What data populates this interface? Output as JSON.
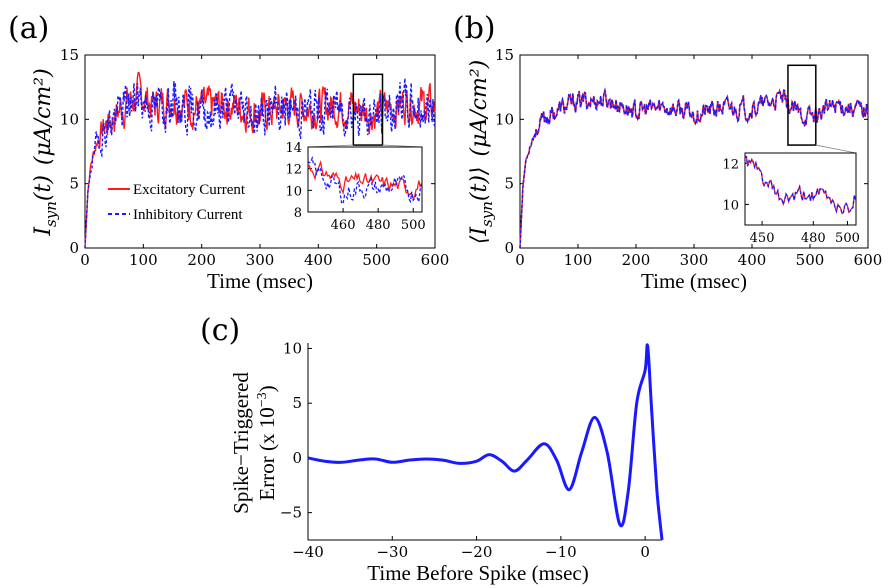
{
  "panel_labels": [
    "(a)",
    "(b)",
    "(c)"
  ],
  "colors": {
    "excitatory": "#ff1a1a",
    "inhibitory": "#1a1aff",
    "axis": "#000000"
  },
  "chart_data": [
    {
      "type": "line",
      "panel": "(a)",
      "xlabel": "Time (msec)",
      "ylabel_parts": {
        "main": "I",
        "sub": "syn",
        "arg": "(t)",
        "units": "(μA/cm²)"
      },
      "xlim": [
        0,
        600
      ],
      "ylim": [
        0,
        15
      ],
      "xticks": [
        "0",
        "100",
        "200",
        "300",
        "400",
        "500",
        "600"
      ],
      "yticks": [
        "0",
        "5",
        "10",
        "15"
      ],
      "legend": {
        "placement": "lower-left, inside"
      },
      "series": [
        {
          "name": "Excitatory Current",
          "style": "solid",
          "color": "#ff1a1a",
          "x": [
            0,
            5,
            10,
            20,
            30,
            40,
            50,
            60,
            70,
            80,
            90,
            100,
            120,
            150,
            200,
            250,
            300,
            350,
            400,
            450,
            480,
            500,
            550,
            600
          ],
          "y": [
            0,
            4.5,
            6.5,
            8.3,
            9.2,
            9.8,
            10.3,
            10.8,
            11.2,
            11.5,
            11.7,
            11.8,
            11.0,
            11.6,
            10.8,
            11.2,
            10.5,
            11.0,
            10.9,
            11.2,
            10.6,
            10.5,
            11.4,
            10.9
          ]
        },
        {
          "name": "Inhibitory Current",
          "style": "dashed",
          "color": "#1a1aff",
          "x": [
            0,
            5,
            10,
            20,
            30,
            40,
            50,
            60,
            70,
            80,
            90,
            100,
            120,
            150,
            200,
            250,
            300,
            350,
            400,
            450,
            480,
            500,
            550,
            600
          ],
          "y": [
            0,
            4.3,
            6.3,
            8.1,
            9.0,
            9.6,
            10.1,
            10.6,
            11.0,
            11.3,
            11.5,
            11.6,
            10.8,
            11.4,
            10.6,
            11.0,
            10.3,
            10.8,
            10.7,
            11.0,
            10.3,
            10.2,
            11.2,
            10.7
          ]
        }
      ],
      "zoom_box": {
        "x": [
          460,
          510
        ],
        "y": [
          8,
          13.5
        ]
      },
      "inset": {
        "xlim": [
          440,
          505
        ],
        "ylim": [
          8,
          14
        ],
        "xticks": [
          "460",
          "480",
          "500"
        ],
        "yticks": [
          "8",
          "10",
          "12",
          "14"
        ]
      }
    },
    {
      "type": "line",
      "panel": "(b)",
      "xlabel": "Time (msec)",
      "ylabel_parts": {
        "main": "⟨I",
        "sub": "syn",
        "arg": "(t)⟩",
        "units": "(μA/cm²)"
      },
      "xlim": [
        0,
        600
      ],
      "ylim": [
        0,
        15
      ],
      "xticks": [
        "0",
        "100",
        "200",
        "300",
        "400",
        "500",
        "600"
      ],
      "yticks": [
        "0",
        "5",
        "10",
        "15"
      ],
      "series": [
        {
          "style": "mixed",
          "x": [
            0,
            5,
            10,
            20,
            30,
            40,
            50,
            70,
            100,
            150,
            200,
            250,
            300,
            350,
            400,
            450,
            480,
            500,
            550,
            600
          ],
          "y": [
            0,
            4.8,
            6.8,
            8.4,
            9.3,
            9.9,
            10.3,
            10.8,
            11.4,
            11.5,
            10.6,
            11.0,
            10.4,
            10.9,
            10.8,
            11.6,
            10.4,
            10.2,
            11.2,
            10.6
          ]
        }
      ],
      "zoom_box": {
        "x": [
          462,
          510
        ],
        "y": [
          8,
          14.2
        ]
      },
      "inset": {
        "xlim": [
          440,
          505
        ],
        "ylim": [
          9,
          12.5
        ],
        "xticks": [
          "450",
          "480",
          "500"
        ],
        "yticks": [
          "10",
          "12"
        ]
      }
    },
    {
      "type": "line",
      "panel": "(c)",
      "xlabel": "Time Before Spike (msec)",
      "ylabel_lines": [
        "Spike−Triggered",
        "Error (x 10",
        "−3",
        ")"
      ],
      "xlim": [
        -40,
        2
      ],
      "ylim": [
        -7.5,
        10.5
      ],
      "xticks": [
        "−40",
        "−30",
        "−20",
        "−10",
        "0"
      ],
      "yticks": [
        "−5",
        "0",
        "5",
        "10"
      ],
      "series": [
        {
          "color": "#1a1aff",
          "x": [
            -40,
            -38,
            -36,
            -34,
            -32,
            -30,
            -28,
            -26,
            -24,
            -22,
            -20,
            -18.5,
            -17,
            -15.5,
            -14,
            -12,
            -10.5,
            -9,
            -7.5,
            -6,
            -4.5,
            -3,
            -2,
            -1,
            0,
            0.3,
            0.8,
            1.4,
            2
          ],
          "y": [
            0,
            -0.3,
            -0.4,
            -0.2,
            -0.1,
            -0.4,
            -0.2,
            -0.1,
            -0.2,
            -0.5,
            -0.3,
            0.3,
            -0.3,
            -1.2,
            -0.2,
            1.3,
            -0.2,
            -2.9,
            0.6,
            3.7,
            0.5,
            -6.1,
            -3.0,
            5.0,
            8.0,
            10.2,
            4.0,
            -3.0,
            -7.5
          ]
        }
      ]
    }
  ]
}
